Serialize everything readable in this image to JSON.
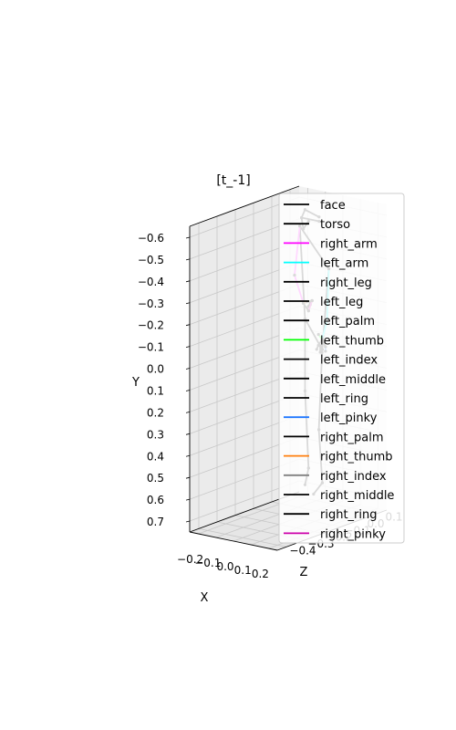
{
  "chart_data": {
    "type": "line",
    "projection": "3d",
    "title": "[t_-1]",
    "xlabel": "X",
    "ylabel": "Y",
    "zlabel": "Z",
    "x_ticks": [
      "−0.2",
      "−0.1",
      "0.0",
      "0.1",
      "0.2"
    ],
    "y_ticks": [
      "−0.6",
      "−0.5",
      "−0.4",
      "−0.3",
      "−0.2",
      "−0.1",
      "0.0",
      "0.1",
      "0.2",
      "0.3",
      "0.4",
      "0.5",
      "0.6",
      "0.7"
    ],
    "z_ticks": [
      "−0.4",
      "−0.3",
      "−0.2",
      "−0.1",
      "0.0",
      "0.1"
    ],
    "xlim": [
      -0.25,
      0.25
    ],
    "ylim": [
      -0.65,
      0.75
    ],
    "zlim": [
      -0.45,
      0.15
    ],
    "y_inverted": true,
    "grid": true,
    "legend_placement": "right",
    "series": [
      {
        "name": "face",
        "color": "#000000",
        "segments": [
          [
            [
              -0.08,
              -0.58,
              0.0
            ],
            [
              -0.06,
              -0.62,
              0.0
            ]
          ],
          [
            [
              -0.08,
              -0.58,
              0.0
            ],
            [
              0.02,
              -0.58,
              0.0
            ]
          ],
          [
            [
              -0.06,
              -0.62,
              0.0
            ],
            [
              0.02,
              -0.6,
              0.0
            ]
          ],
          [
            [
              -0.08,
              -0.58,
              0.0
            ],
            [
              -0.07,
              -0.53,
              0.0
            ]
          ],
          [
            [
              -0.07,
              -0.53,
              0.0
            ],
            [
              -0.04,
              -0.57,
              0.0
            ]
          ]
        ]
      },
      {
        "name": "torso",
        "color": "#000000",
        "segments": [
          [
            [
              -0.09,
              -0.54,
              0.0
            ],
            [
              0.18,
              -0.42,
              -0.1
            ]
          ],
          [
            [
              -0.09,
              -0.54,
              0.0
            ],
            [
              -0.06,
              -0.12,
              0.0
            ]
          ],
          [
            [
              0.18,
              -0.42,
              -0.1
            ],
            [
              0.09,
              -0.02,
              -0.05
            ]
          ],
          [
            [
              -0.06,
              -0.12,
              0.0
            ],
            [
              0.09,
              -0.02,
              -0.05
            ]
          ]
        ]
      },
      {
        "name": "right_arm",
        "color": "#ff00ff",
        "segments": [
          [
            [
              -0.09,
              -0.54,
              0.0
            ],
            [
              -0.12,
              -0.31,
              0.0
            ]
          ],
          [
            [
              -0.12,
              -0.31,
              0.0
            ],
            [
              -0.07,
              -0.19,
              0.0
            ]
          ]
        ]
      },
      {
        "name": "left_arm",
        "color": "#00ffff",
        "segments": [
          [
            [
              0.18,
              -0.42,
              -0.1
            ],
            [
              0.17,
              -0.18,
              -0.1
            ]
          ],
          [
            [
              0.17,
              -0.18,
              -0.1
            ],
            [
              0.12,
              -0.08,
              -0.08
            ]
          ]
        ]
      },
      {
        "name": "right_leg",
        "color": "#000000",
        "segments": [
          [
            [
              -0.06,
              -0.12,
              0.0
            ],
            [
              -0.06,
              0.21,
              0.0
            ]
          ],
          [
            [
              -0.06,
              0.21,
              0.0
            ],
            [
              -0.04,
              0.56,
              0.0
            ]
          ],
          [
            [
              -0.04,
              0.56,
              0.0
            ],
            [
              -0.06,
              0.64,
              0.0
            ]
          ]
        ]
      },
      {
        "name": "left_leg",
        "color": "#000000",
        "segments": [
          [
            [
              0.09,
              -0.02,
              -0.05
            ],
            [
              0.05,
              0.36,
              -0.03
            ]
          ],
          [
            [
              0.05,
              0.36,
              -0.03
            ],
            [
              0.07,
              0.6,
              -0.03
            ]
          ],
          [
            [
              0.07,
              0.6,
              -0.03
            ],
            [
              0.02,
              0.66,
              -0.03
            ]
          ]
        ]
      },
      {
        "name": "left_palm",
        "color": "#000000",
        "segments": [
          [
            [
              0.12,
              -0.08,
              -0.08
            ],
            [
              0.1,
              -0.05,
              -0.08
            ]
          ],
          [
            [
              0.12,
              -0.08,
              -0.08
            ],
            [
              0.14,
              -0.05,
              -0.08
            ]
          ]
        ]
      },
      {
        "name": "left_thumb",
        "color": "#00ff00",
        "segments": [
          [
            [
              0.12,
              -0.08,
              -0.08
            ],
            [
              0.1,
              -0.1,
              -0.08
            ]
          ]
        ]
      },
      {
        "name": "left_index",
        "color": "#000000",
        "segments": [
          [
            [
              0.1,
              -0.05,
              -0.08
            ],
            [
              0.09,
              -0.03,
              -0.08
            ]
          ]
        ]
      },
      {
        "name": "left_middle",
        "color": "#000000",
        "segments": [
          [
            [
              0.11,
              -0.05,
              -0.08
            ],
            [
              0.11,
              -0.02,
              -0.08
            ]
          ]
        ]
      },
      {
        "name": "left_ring",
        "color": "#000000",
        "segments": [
          [
            [
              0.12,
              -0.05,
              -0.08
            ],
            [
              0.12,
              -0.02,
              -0.08
            ]
          ]
        ]
      },
      {
        "name": "left_pinky",
        "color": "#1f77ff",
        "segments": [
          [
            [
              0.14,
              -0.05,
              -0.08
            ],
            [
              0.14,
              -0.03,
              -0.08
            ]
          ]
        ]
      },
      {
        "name": "right_palm",
        "color": "#000000",
        "segments": [
          [
            [
              -0.07,
              -0.19,
              0.0
            ],
            [
              -0.02,
              -0.21,
              0.0
            ]
          ],
          [
            [
              -0.07,
              -0.19,
              0.0
            ],
            [
              -0.04,
              -0.16,
              0.0
            ]
          ]
        ]
      },
      {
        "name": "right_thumb",
        "color": "#ff7f0e",
        "segments": [
          [
            [
              -0.07,
              -0.19,
              0.0
            ],
            [
              -0.05,
              -0.2,
              0.0
            ]
          ]
        ]
      },
      {
        "name": "right_index",
        "color": "#808080",
        "segments": [
          [
            [
              -0.02,
              -0.21,
              0.0
            ],
            [
              -0.03,
              -0.19,
              0.0
            ]
          ]
        ]
      },
      {
        "name": "right_middle",
        "color": "#000000",
        "segments": [
          [
            [
              -0.03,
              -0.2,
              0.0
            ],
            [
              -0.04,
              -0.18,
              0.0
            ]
          ]
        ]
      },
      {
        "name": "right_ring",
        "color": "#000000",
        "segments": [
          [
            [
              -0.04,
              -0.18,
              0.0
            ],
            [
              -0.02,
              -0.21,
              0.0
            ]
          ]
        ]
      },
      {
        "name": "right_pinky",
        "color": "#cc00aa",
        "segments": [
          [
            [
              -0.04,
              -0.16,
              0.0
            ],
            [
              -0.02,
              -0.21,
              0.0
            ]
          ]
        ]
      }
    ]
  }
}
